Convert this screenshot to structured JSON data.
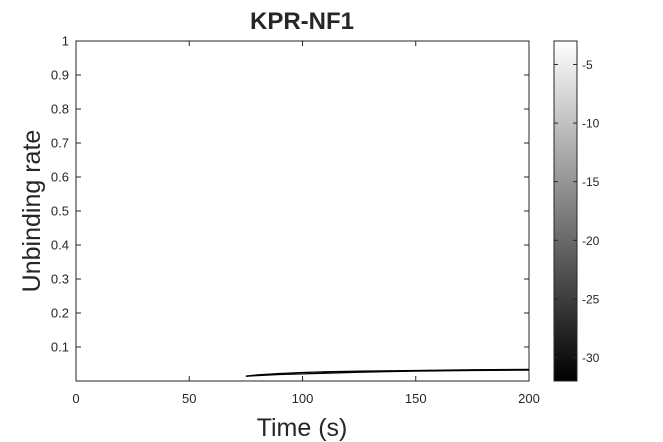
{
  "chart_data": {
    "type": "line",
    "title": "KPR-NF1",
    "xlabel": "Time (s)",
    "ylabel": "Unbinding rate",
    "xlim": [
      0,
      200
    ],
    "ylim": [
      0.0,
      1.0
    ],
    "xticks": [
      0,
      50,
      100,
      150,
      200
    ],
    "xtick_labels": [
      "0",
      "50",
      "100",
      "150",
      "200"
    ],
    "yticks": [
      0.1,
      0.2,
      0.3,
      0.4,
      0.5,
      0.6,
      0.7,
      0.8,
      0.9,
      1.0
    ],
    "ytick_labels": [
      "0.1",
      "0.2",
      "0.3",
      "0.4",
      "0.5",
      "0.6",
      "0.7",
      "0.8",
      "0.9",
      "1"
    ],
    "grid": false,
    "colormap": "gray",
    "colorbar": {
      "clim": [
        -32,
        -3
      ],
      "ticks": [
        -5,
        -10,
        -15,
        -20,
        -25,
        -30
      ],
      "tick_labels": [
        "-5",
        "-10",
        "-15",
        "-20",
        "-25",
        "-30"
      ]
    },
    "series": [
      {
        "color": "#000000",
        "x": [
          75,
          80,
          90,
          100,
          110,
          125,
          150,
          175,
          200
        ],
        "y": [
          0.014,
          0.018,
          0.022,
          0.025,
          0.027,
          0.029,
          0.031,
          0.033,
          0.034
        ]
      },
      {
        "color": "#000000",
        "x": [
          75,
          80,
          90,
          100,
          110,
          125,
          150,
          175,
          200
        ],
        "y": [
          0.014,
          0.016,
          0.019,
          0.021,
          0.023,
          0.026,
          0.029,
          0.031,
          0.032
        ]
      }
    ]
  }
}
